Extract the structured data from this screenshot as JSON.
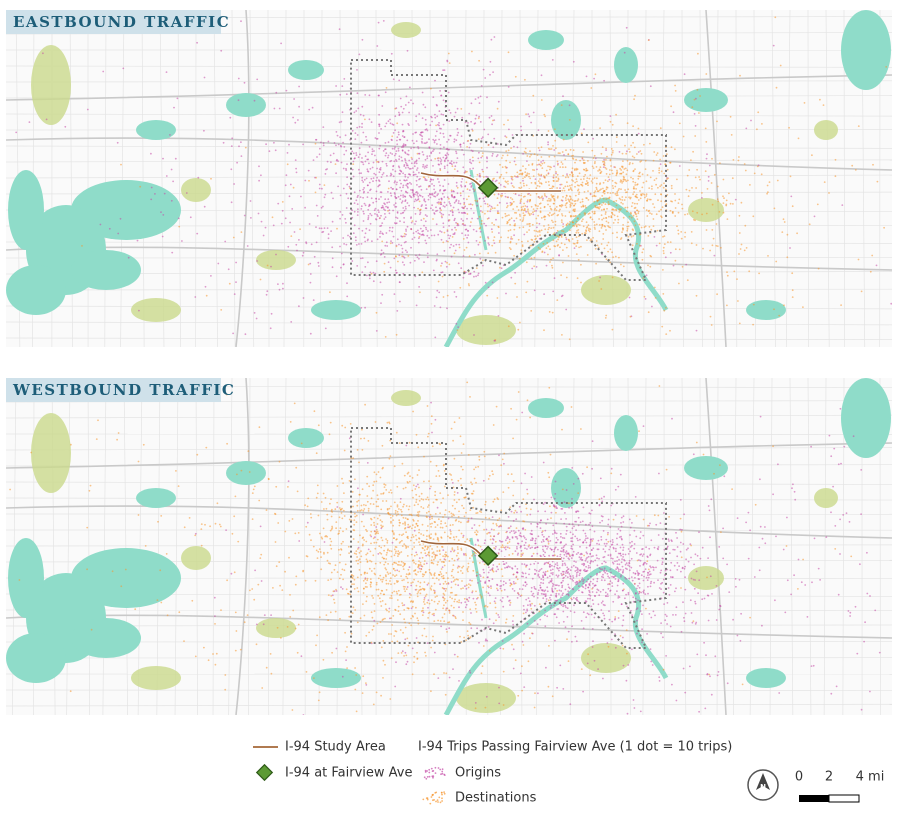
{
  "panels": [
    {
      "title": "EASTBOUND TRAFFIC"
    },
    {
      "title": "WESTBOUND TRAFFIC"
    }
  ],
  "legend": {
    "study_area": "I-94 Study Area",
    "fairview": "I-94 at Fairview Ave",
    "trips_title": "I-94 Trips Passing Fairview Ave  (1 dot = 10 trips)",
    "origins": "Origins",
    "destinations": "Destinations"
  },
  "scale": {
    "labels": [
      "0",
      "2",
      "4 mi"
    ]
  },
  "north": "N"
}
